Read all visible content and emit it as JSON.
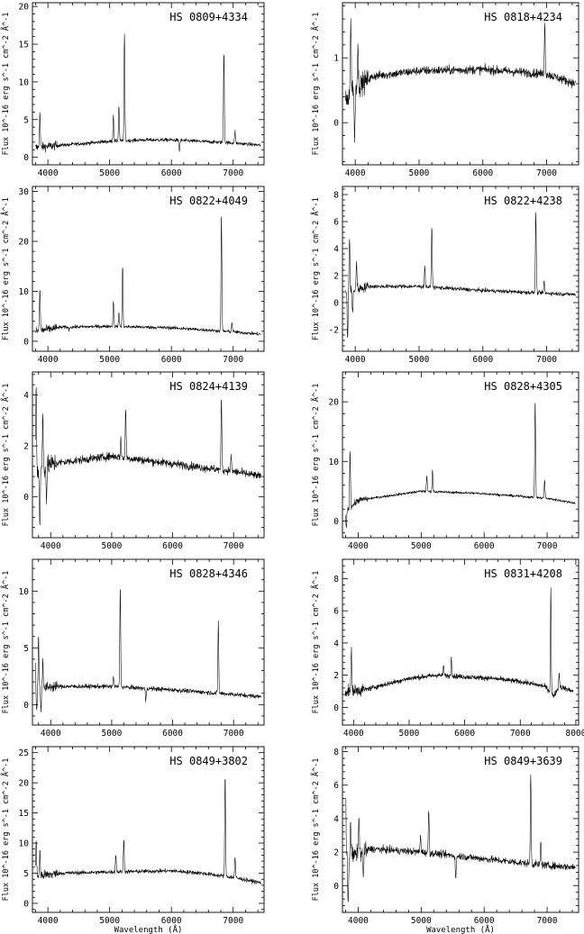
{
  "chart_data": [
    {
      "type": "line",
      "title": "HS 0809+4334",
      "ylabel": "Flux 10^-16 erg s^-1 cm^-2 Å^-1",
      "xlabel": "",
      "xlim": [
        3750,
        7500
      ],
      "ylim": [
        -1,
        20.5
      ],
      "xticks": [
        4000,
        5000,
        6000,
        7000
      ],
      "yticks": [
        0,
        5,
        10,
        15,
        20
      ],
      "continuum": [
        [
          3800,
          1.3
        ],
        [
          4200,
          1.6
        ],
        [
          5000,
          2.1
        ],
        [
          5500,
          2.3
        ],
        [
          6000,
          2.3
        ],
        [
          6500,
          2.1
        ],
        [
          7000,
          1.9
        ],
        [
          7450,
          1.6
        ]
      ],
      "noise": 0.25,
      "lines": [
        {
          "x": 3870,
          "peak": 5.8
        },
        {
          "x": 4340,
          "peak": 1.5
        },
        {
          "x": 4860,
          "peak": 2.2
        },
        {
          "x": 5060,
          "peak": 5.6
        },
        {
          "x": 5150,
          "peak": 6.8
        },
        {
          "x": 5240,
          "peak": 16.4
        },
        {
          "x": 6130,
          "peak": 0.8
        },
        {
          "x": 6850,
          "peak": 14.0
        },
        {
          "x": 7030,
          "peak": 3.5
        }
      ]
    },
    {
      "type": "line",
      "title": "HS 0818+4234",
      "ylabel": "Flux 10^-16 erg s^-1 cm^-2 Å^-1",
      "xlabel": "",
      "xlim": [
        3800,
        7500
      ],
      "ylim": [
        -0.65,
        1.85
      ],
      "xticks": [
        4000,
        5000,
        6000,
        7000
      ],
      "yticks": [
        0,
        1
      ],
      "continuum": [
        [
          3850,
          0.3
        ],
        [
          3950,
          0.55
        ],
        [
          4100,
          0.6
        ],
        [
          4300,
          0.72
        ],
        [
          5000,
          0.8
        ],
        [
          6000,
          0.82
        ],
        [
          7000,
          0.75
        ],
        [
          7450,
          0.6
        ]
      ],
      "noise": 0.07,
      "lines": [
        {
          "x": 3930,
          "peak": 1.55
        },
        {
          "x": 3990,
          "peak": -0.3
        },
        {
          "x": 4040,
          "peak": 1.2
        },
        {
          "x": 6970,
          "peak": 1.5
        }
      ]
    },
    {
      "type": "line",
      "title": "HS 0822+4049",
      "ylabel": "Flux 10^-16 erg s^-1 cm^-2 Å^-1",
      "xlabel": "",
      "xlim": [
        3750,
        7500
      ],
      "ylim": [
        -2,
        31
      ],
      "xticks": [
        4000,
        5000,
        6000,
        7000
      ],
      "yticks": [
        0,
        10,
        20,
        30
      ],
      "continuum": [
        [
          3800,
          2.0
        ],
        [
          4200,
          2.8
        ],
        [
          5000,
          3.0
        ],
        [
          6000,
          2.7
        ],
        [
          6500,
          2.3
        ],
        [
          7000,
          1.9
        ],
        [
          7450,
          1.4
        ]
      ],
      "noise": 0.35,
      "lines": [
        {
          "x": 3870,
          "peak": 10.5
        },
        {
          "x": 4340,
          "peak": 2.3
        },
        {
          "x": 5060,
          "peak": 8.0
        },
        {
          "x": 5150,
          "peak": 5.5
        },
        {
          "x": 5210,
          "peak": 15.2
        },
        {
          "x": 6810,
          "peak": 25.8
        },
        {
          "x": 6980,
          "peak": 3.8
        }
      ]
    },
    {
      "type": "line",
      "title": "HS 0822+4238",
      "ylabel": "Flux 10^-16 erg s^-1 cm^-2 Å^-1",
      "xlabel": "",
      "xlim": [
        3800,
        7500
      ],
      "ylim": [
        -3.6,
        8.6
      ],
      "xticks": [
        4000,
        5000,
        6000,
        7000
      ],
      "yticks": [
        -2,
        0,
        2,
        4,
        6,
        8
      ],
      "continuum": [
        [
          3850,
          0.8
        ],
        [
          4200,
          1.2
        ],
        [
          5000,
          1.2
        ],
        [
          6000,
          0.9
        ],
        [
          7000,
          0.7
        ],
        [
          7450,
          0.6
        ]
      ],
      "noise": 0.15,
      "lines": [
        {
          "x": 3880,
          "peak": -2.8
        },
        {
          "x": 3910,
          "peak": 4.8
        },
        {
          "x": 3960,
          "peak": -0.8
        },
        {
          "x": 4020,
          "peak": 3.0
        },
        {
          "x": 5090,
          "peak": 2.7
        },
        {
          "x": 5200,
          "peak": 5.6
        },
        {
          "x": 6830,
          "peak": 6.8
        },
        {
          "x": 6960,
          "peak": 1.6
        }
      ]
    },
    {
      "type": "line",
      "title": "HS 0824+4139",
      "ylabel": "Flux 10^-16 erg s^-1 cm^-2 Å^-1",
      "xlabel": "",
      "xlim": [
        3700,
        7500
      ],
      "ylim": [
        -1.6,
        4.9
      ],
      "xticks": [
        4000,
        5000,
        6000,
        7000
      ],
      "yticks": [
        0,
        2,
        4
      ],
      "continuum": [
        [
          3750,
          0.9
        ],
        [
          4000,
          1.3
        ],
        [
          5000,
          1.6
        ],
        [
          6000,
          1.3
        ],
        [
          7000,
          1.0
        ],
        [
          7450,
          0.8
        ]
      ],
      "noise": 0.16,
      "lines": [
        {
          "x": 3760,
          "peak": 4.3
        },
        {
          "x": 3820,
          "peak": -1.1
        },
        {
          "x": 3870,
          "peak": 3.2
        },
        {
          "x": 3930,
          "peak": 0.0
        },
        {
          "x": 5150,
          "peak": 2.3
        },
        {
          "x": 5230,
          "peak": 3.5
        },
        {
          "x": 6800,
          "peak": 3.9
        },
        {
          "x": 6960,
          "peak": 1.6
        }
      ]
    },
    {
      "type": "line",
      "title": "HS 0828+4305",
      "ylabel": "Flux 10^-16 erg s^-1 cm^-2 Å^-1",
      "xlabel": "",
      "xlim": [
        3750,
        7500
      ],
      "ylim": [
        -2.8,
        25
      ],
      "xticks": [
        4000,
        5000,
        6000,
        7000
      ],
      "yticks": [
        0,
        10,
        20
      ],
      "continuum": [
        [
          3800,
          1.5
        ],
        [
          4000,
          3.5
        ],
        [
          5000,
          5.0
        ],
        [
          6000,
          4.6
        ],
        [
          6500,
          4.2
        ],
        [
          7000,
          3.8
        ],
        [
          7450,
          3.0
        ]
      ],
      "noise": 0.22,
      "lines": [
        {
          "x": 3810,
          "peak": -1.0
        },
        {
          "x": 3870,
          "peak": 12.0
        },
        {
          "x": 5090,
          "peak": 7.5
        },
        {
          "x": 5180,
          "peak": 8.4
        },
        {
          "x": 6810,
          "peak": 20.2
        },
        {
          "x": 6960,
          "peak": 6.8
        }
      ]
    },
    {
      "type": "line",
      "title": "HS 0828+4346",
      "ylabel": "Flux 10^-16 erg s^-1 cm^-2 Å^-1",
      "xlabel": "",
      "xlim": [
        3700,
        7500
      ],
      "ylim": [
        -1.8,
        12.8
      ],
      "xticks": [
        4000,
        5000,
        6000,
        7000
      ],
      "yticks": [
        0,
        5,
        10
      ],
      "continuum": [
        [
          3750,
          1.2
        ],
        [
          4000,
          1.6
        ],
        [
          5000,
          1.6
        ],
        [
          6000,
          1.3
        ],
        [
          7000,
          0.9
        ],
        [
          7450,
          0.7
        ]
      ],
      "noise": 0.2,
      "lines": [
        {
          "x": 3740,
          "peak": 8.6
        },
        {
          "x": 3770,
          "peak": -0.6
        },
        {
          "x": 3800,
          "peak": 6.2
        },
        {
          "x": 3840,
          "peak": -0.4
        },
        {
          "x": 3870,
          "peak": 4.0
        },
        {
          "x": 5030,
          "peak": 2.5
        },
        {
          "x": 5140,
          "peak": 10.4
        },
        {
          "x": 5560,
          "peak": 0.3
        },
        {
          "x": 6750,
          "peak": 7.3
        }
      ]
    },
    {
      "type": "line",
      "title": "HS 0831+4208",
      "ylabel": "Flux 10^-16 erg s^-1 cm^-2 Å^-1",
      "xlabel": "",
      "xlim": [
        3800,
        8050
      ],
      "ylim": [
        -1.1,
        9.2
      ],
      "xticks": [
        4000,
        5000,
        6000,
        7000,
        8000
      ],
      "yticks": [
        0,
        2,
        4,
        6,
        8
      ],
      "continuum": [
        [
          3850,
          1.0
        ],
        [
          4200,
          1.1
        ],
        [
          5000,
          1.8
        ],
        [
          5500,
          2.0
        ],
        [
          6000,
          1.9
        ],
        [
          6500,
          1.8
        ],
        [
          7000,
          1.6
        ],
        [
          7450,
          1.3
        ],
        [
          7600,
          0.7
        ],
        [
          7700,
          1.3
        ],
        [
          7950,
          1.0
        ]
      ],
      "noise": 0.16,
      "lines": [
        {
          "x": 3960,
          "peak": 3.5
        },
        {
          "x": 5620,
          "peak": 2.6
        },
        {
          "x": 5760,
          "peak": 3.2
        },
        {
          "x": 7550,
          "peak": 7.4
        },
        {
          "x": 7700,
          "peak": 2.2
        }
      ]
    },
    {
      "type": "line",
      "title": "HS 0849+3802",
      "ylabel": "Flux 10^-16 erg s^-1 cm^-2 Å^-1",
      "xlabel": "Wavelength (Å)",
      "xlim": [
        3750,
        7500
      ],
      "ylim": [
        -1.5,
        26
      ],
      "xticks": [
        4000,
        5000,
        6000,
        7000
      ],
      "yticks": [
        0,
        5,
        10,
        15,
        20,
        25
      ],
      "continuum": [
        [
          3800,
          4.5
        ],
        [
          4200,
          5.0
        ],
        [
          5000,
          5.2
        ],
        [
          6000,
          5.4
        ],
        [
          6500,
          5.0
        ],
        [
          7000,
          4.3
        ],
        [
          7450,
          3.4
        ]
      ],
      "noise": 0.35,
      "lines": [
        {
          "x": 3810,
          "peak": 10.3
        },
        {
          "x": 3870,
          "peak": 8.5
        },
        {
          "x": 5100,
          "peak": 8.1
        },
        {
          "x": 5230,
          "peak": 10.7
        },
        {
          "x": 6870,
          "peak": 21.0
        },
        {
          "x": 7030,
          "peak": 7.6
        }
      ]
    },
    {
      "type": "line",
      "title": "HS 0849+3639",
      "ylabel": "Flux 10^-16 erg s^-1 cm^-2 Å^-1",
      "xlabel": "Wavelength (Å)",
      "xlim": [
        3750,
        7500
      ],
      "ylim": [
        -1.6,
        8.3
      ],
      "xticks": [
        4000,
        5000,
        6000,
        7000
      ],
      "yticks": [
        0,
        2,
        4,
        6,
        8
      ],
      "continuum": [
        [
          3800,
          1.6
        ],
        [
          4200,
          2.2
        ],
        [
          5000,
          2.0
        ],
        [
          6000,
          1.6
        ],
        [
          7000,
          1.2
        ],
        [
          7450,
          1.1
        ]
      ],
      "noise": 0.22,
      "lines": [
        {
          "x": 3800,
          "peak": 5.4
        },
        {
          "x": 3840,
          "peak": -1.0
        },
        {
          "x": 3880,
          "peak": 3.8
        },
        {
          "x": 4010,
          "peak": 4.1
        },
        {
          "x": 4080,
          "peak": 0.5
        },
        {
          "x": 4990,
          "peak": 3.0
        },
        {
          "x": 5120,
          "peak": 4.6
        },
        {
          "x": 5550,
          "peak": 0.4
        },
        {
          "x": 6740,
          "peak": 6.6
        },
        {
          "x": 6900,
          "peak": 2.6
        }
      ]
    }
  ]
}
